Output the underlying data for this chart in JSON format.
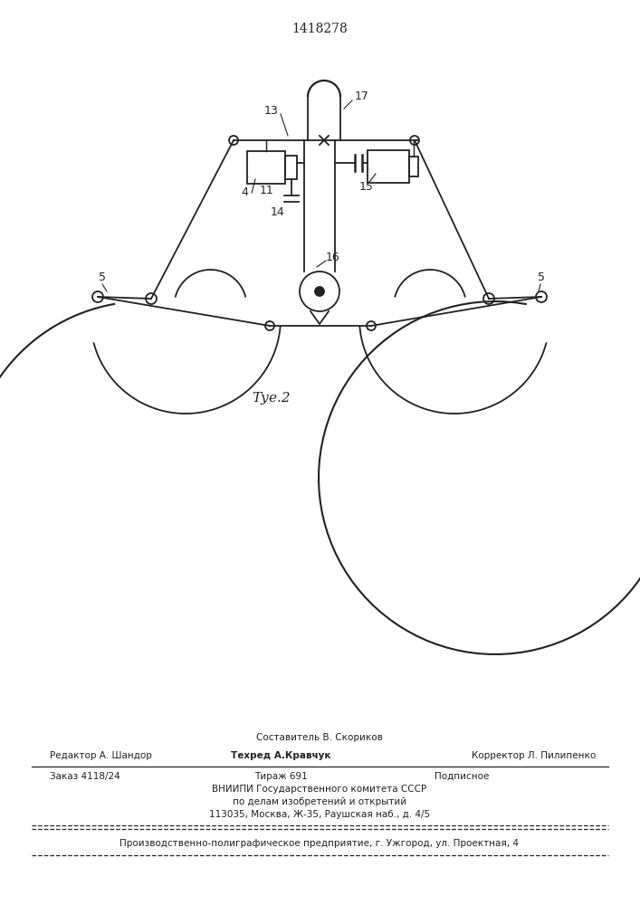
{
  "patent_number": "1418278",
  "fig_label": "Τуе.2",
  "bg_color": "#ffffff",
  "line_color": "#222222",
  "footer": {
    "line1_center": "Составитель В. Скориков",
    "line2_left": "Редактор А. Шандор",
    "line2_center": "Техред А.Кравчук",
    "line2_right": "Корректор Л. Пилипенко",
    "line3_left": "Заказ 4118/24",
    "line3_center": "Тираж 691",
    "line3_right": "Подписное",
    "line4": "ВНИИПИ Государственного комитета СССР",
    "line5": "по делам изобретений и открытий",
    "line6": "113035, Москва, Ж-35, Раушская наб., д. 4/5",
    "line7": "Производственно-полиграфическое предприятие, г. Ужгород, ул. Проектная, 4"
  }
}
